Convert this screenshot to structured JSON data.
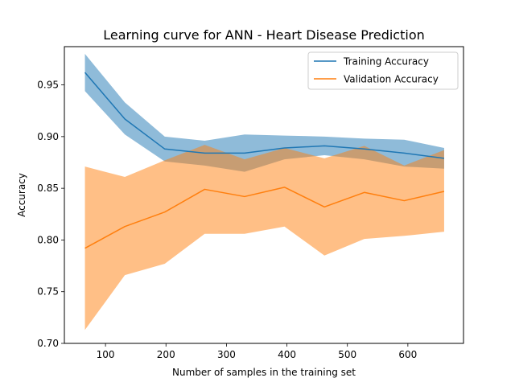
{
  "chart_data": {
    "type": "line",
    "title": "Learning curve for ANN - Heart Disease Prediction",
    "xlabel": "Number of samples in the training set",
    "ylabel": "Accuracy",
    "xlim": [
      32,
      692
    ],
    "ylim": [
      0.7,
      0.987
    ],
    "xticks": [
      {
        "value": 100,
        "label": "100"
      },
      {
        "value": 200,
        "label": "200"
      },
      {
        "value": 300,
        "label": "300"
      },
      {
        "value": 400,
        "label": "400"
      },
      {
        "value": 500,
        "label": "500"
      },
      {
        "value": 600,
        "label": "600"
      }
    ],
    "yticks": [
      {
        "value": 0.7,
        "label": "0.70"
      },
      {
        "value": 0.75,
        "label": "0.75"
      },
      {
        "value": 0.8,
        "label": "0.80"
      },
      {
        "value": 0.85,
        "label": "0.85"
      },
      {
        "value": 0.9,
        "label": "0.90"
      },
      {
        "value": 0.95,
        "label": "0.95"
      }
    ],
    "grid": false,
    "legend_position": "top-right",
    "x": [
      66,
      132,
      198,
      264,
      330,
      396,
      462,
      528,
      594,
      660
    ],
    "series": [
      {
        "name": "Training Accuracy",
        "color": "#1f77b4",
        "band_color": "#1f77b4",
        "values": [
          0.962,
          0.917,
          0.888,
          0.884,
          0.884,
          0.889,
          0.891,
          0.888,
          0.884,
          0.879
        ],
        "upper": [
          0.98,
          0.933,
          0.9,
          0.896,
          0.902,
          0.901,
          0.9,
          0.898,
          0.897,
          0.889
        ],
        "lower": [
          0.944,
          0.902,
          0.876,
          0.872,
          0.866,
          0.878,
          0.882,
          0.878,
          0.871,
          0.869
        ]
      },
      {
        "name": "Validation Accuracy",
        "color": "#ff7f0e",
        "band_color": "#ff7f0e",
        "values": [
          0.792,
          0.813,
          0.827,
          0.849,
          0.842,
          0.851,
          0.832,
          0.846,
          0.838,
          0.847
        ],
        "upper": [
          0.871,
          0.861,
          0.877,
          0.892,
          0.878,
          0.889,
          0.879,
          0.891,
          0.872,
          0.887
        ],
        "lower": [
          0.713,
          0.766,
          0.777,
          0.806,
          0.806,
          0.813,
          0.785,
          0.801,
          0.804,
          0.808
        ]
      }
    ]
  }
}
